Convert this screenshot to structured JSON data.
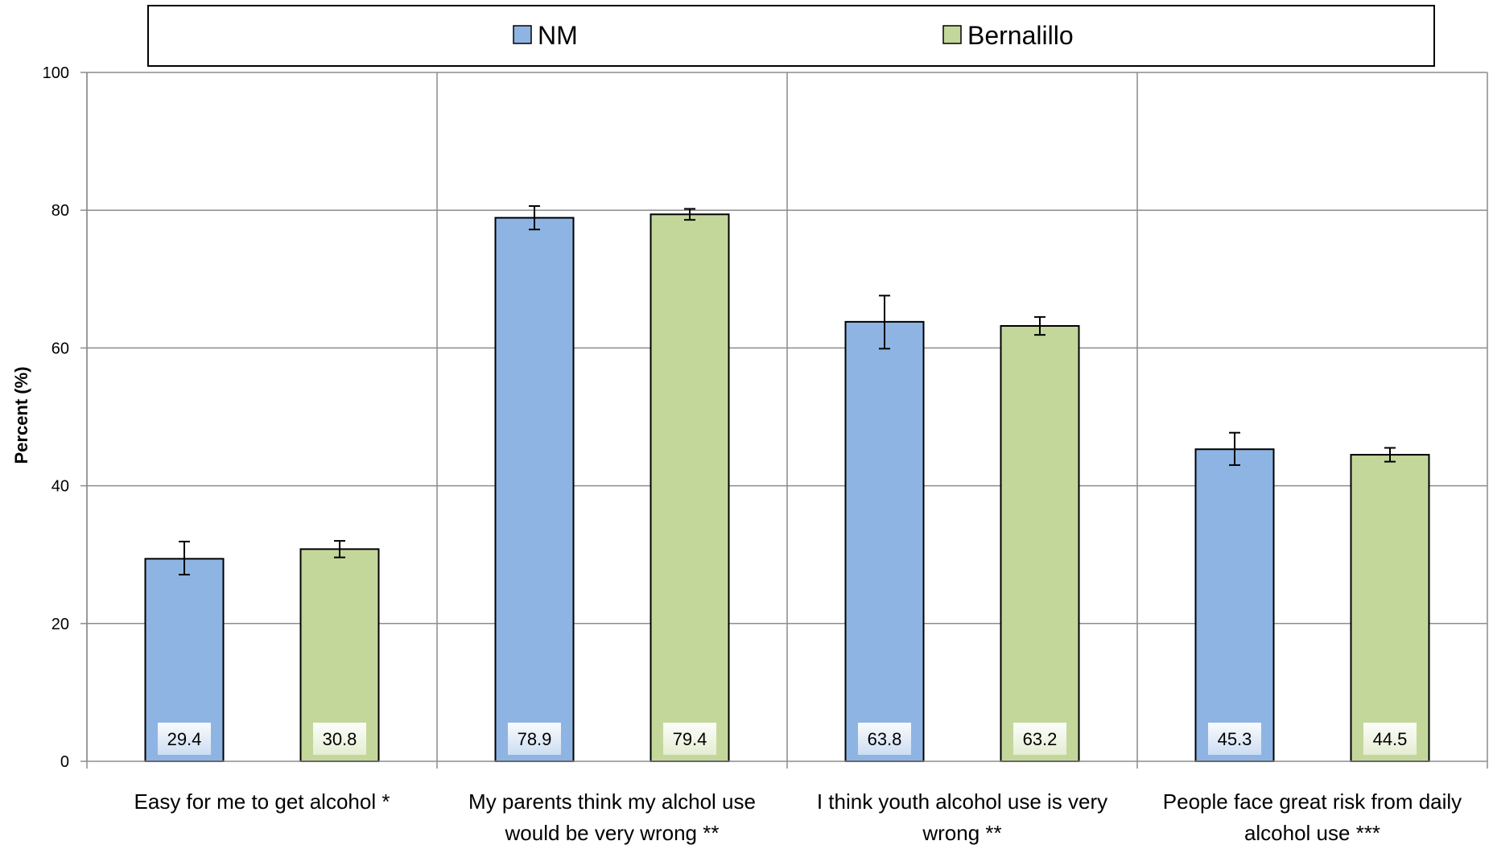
{
  "chart_data": {
    "type": "bar",
    "title": "",
    "ylabel": "Percent (%)",
    "xlabel": "",
    "ylim": [
      0,
      100
    ],
    "yticks": [
      0,
      20,
      40,
      60,
      80,
      100
    ],
    "grid": true,
    "legend_position": "top",
    "categories": [
      [
        "Easy for me to get alcohol *"
      ],
      [
        "My parents think my alchol use",
        "would be very wrong **"
      ],
      [
        "I think youth alcohol use is very",
        "wrong **"
      ],
      [
        "People face great risk from daily",
        "alcohol use ***"
      ]
    ],
    "series": [
      {
        "name": "NM",
        "color": "#8eb4e3",
        "values": [
          29.4,
          78.9,
          63.8,
          45.3
        ],
        "error_low": [
          27.1,
          77.2,
          59.9,
          43.0
        ],
        "error_high": [
          31.9,
          80.6,
          67.6,
          47.7
        ]
      },
      {
        "name": "Bernalillo",
        "color": "#c4d79b",
        "values": [
          30.8,
          79.4,
          63.2,
          44.5
        ],
        "error_low": [
          29.6,
          78.6,
          61.9,
          43.5
        ],
        "error_high": [
          32.0,
          80.2,
          64.5,
          45.5
        ]
      }
    ],
    "data_labels": [
      [
        "29.4",
        "78.9",
        "63.8",
        "45.3"
      ],
      [
        "30.8",
        "79.4",
        "63.2",
        "44.5"
      ]
    ]
  }
}
